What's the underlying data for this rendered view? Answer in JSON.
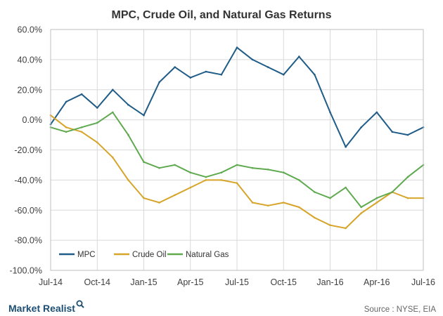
{
  "footer": {
    "brand": "Market Realist",
    "source": "Source : NYSE, EIA"
  },
  "colors": {
    "grid": "#d9d9d9",
    "axis": "#bfbfbf",
    "brand": "#1d4f73"
  },
  "chart_data": {
    "type": "line",
    "title": "MPC, Crude Oil, and Natural Gas Returns",
    "xlabel": "",
    "ylabel": "",
    "x_tick_labels": [
      "Jul-14",
      "Oct-14",
      "Jan-15",
      "Apr-15",
      "Jul-15",
      "Oct-15",
      "Jan-16",
      "Apr-16",
      "Jul-16"
    ],
    "y_tick_labels": [
      "60.0%",
      "40.0%",
      "20.0%",
      "0.0%",
      "-20.0%",
      "-40.0%",
      "-60.0%",
      "-80.0%",
      "-100.0%"
    ],
    "ylim": [
      -100,
      60
    ],
    "grid": true,
    "legend_position": "bottom-left",
    "series": [
      {
        "name": "MPC",
        "color": "#1f5c87",
        "x": [
          "Jul-14",
          "Aug-14",
          "Sep-14",
          "Oct-14",
          "Nov-14",
          "Dec-14",
          "Jan-15",
          "Feb-15",
          "Mar-15",
          "Apr-15",
          "May-15",
          "Jun-15",
          "Jul-15",
          "Aug-15",
          "Sep-15",
          "Oct-15",
          "Nov-15",
          "Dec-15",
          "Jan-16",
          "Feb-16",
          "Mar-16",
          "Apr-16",
          "May-16",
          "Jun-16",
          "Jul-16"
        ],
        "values": [
          -3,
          12,
          17,
          8,
          20,
          10,
          3,
          25,
          35,
          28,
          32,
          30,
          48,
          40,
          35,
          30,
          42,
          30,
          5,
          -18,
          -5,
          5,
          -8,
          -10,
          -5
        ]
      },
      {
        "name": "Crude Oil",
        "color": "#d6a52a",
        "x": [
          "Jul-14",
          "Aug-14",
          "Sep-14",
          "Oct-14",
          "Nov-14",
          "Dec-14",
          "Jan-15",
          "Feb-15",
          "Mar-15",
          "Apr-15",
          "May-15",
          "Jun-15",
          "Jul-15",
          "Aug-15",
          "Sep-15",
          "Oct-15",
          "Nov-15",
          "Dec-15",
          "Jan-16",
          "Feb-16",
          "Mar-16",
          "Apr-16",
          "May-16",
          "Jun-16",
          "Jul-16"
        ],
        "values": [
          3,
          -5,
          -8,
          -15,
          -25,
          -40,
          -52,
          -55,
          -50,
          -45,
          -40,
          -40,
          -42,
          -55,
          -57,
          -55,
          -58,
          -65,
          -70,
          -72,
          -62,
          -55,
          -48,
          -52,
          -52
        ]
      },
      {
        "name": "Natural Gas",
        "color": "#5faa4f",
        "x": [
          "Jul-14",
          "Aug-14",
          "Sep-14",
          "Oct-14",
          "Nov-14",
          "Dec-14",
          "Jan-15",
          "Feb-15",
          "Mar-15",
          "Apr-15",
          "May-15",
          "Jun-15",
          "Jul-15",
          "Aug-15",
          "Sep-15",
          "Oct-15",
          "Nov-15",
          "Dec-15",
          "Jan-16",
          "Feb-16",
          "Mar-16",
          "Apr-16",
          "May-16",
          "Jun-16",
          "Jul-16"
        ],
        "values": [
          -5,
          -8,
          -5,
          -2,
          5,
          -10,
          -28,
          -32,
          -30,
          -35,
          -38,
          -35,
          -30,
          -32,
          -33,
          -35,
          -40,
          -48,
          -52,
          -45,
          -58,
          -52,
          -48,
          -38,
          -30
        ]
      }
    ]
  }
}
